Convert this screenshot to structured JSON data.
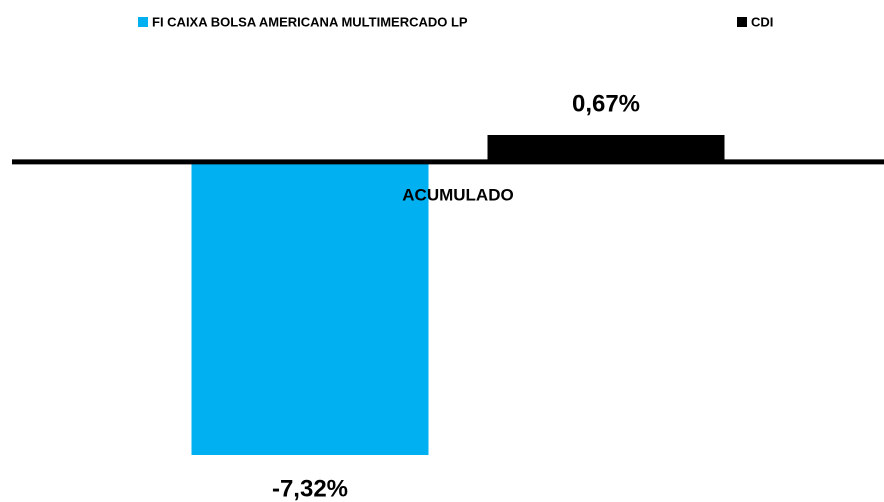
{
  "chart_data": {
    "type": "bar",
    "categories": [
      "ACUMULADO"
    ],
    "series": [
      {
        "name": "FI CAIXA BOLSA AMERICANA MULTIMERCADO LP",
        "color": "#00b0f0",
        "values": [
          -7.32
        ],
        "value_labels": [
          "-7,32%"
        ]
      },
      {
        "name": "CDI",
        "color": "#000000",
        "values": [
          0.67
        ],
        "value_labels": [
          "0,67%"
        ]
      }
    ],
    "legend": "top"
  }
}
